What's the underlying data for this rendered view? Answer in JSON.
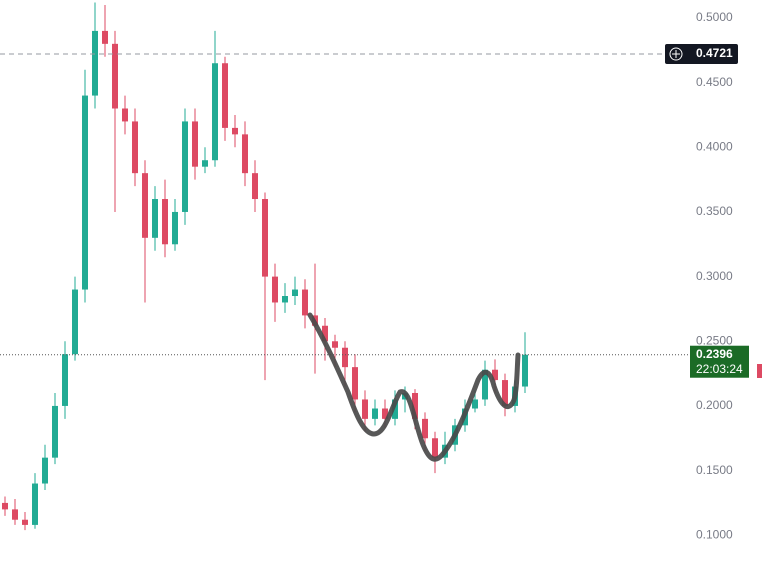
{
  "chart_data": {
    "type": "candlestick",
    "ylim": [
      0.0623,
      0.5139
    ],
    "yticks": [
      {
        "value": 0.5,
        "label": "0.5000"
      },
      {
        "value": 0.45,
        "label": "0.4500"
      },
      {
        "value": 0.4,
        "label": "0.4000"
      },
      {
        "value": 0.35,
        "label": "0.3500"
      },
      {
        "value": 0.3,
        "label": "0.3000"
      },
      {
        "value": 0.25,
        "label": "0.2500"
      },
      {
        "value": 0.2,
        "label": "0.2000"
      },
      {
        "value": 0.15,
        "label": "0.1500"
      },
      {
        "value": 0.1,
        "label": "0.1000"
      }
    ],
    "grid": false,
    "up_color": "#22ab94",
    "down_color": "#dd4a63",
    "price_line": 0.4721,
    "last_price": 0.2396,
    "countdown": "22:03:24",
    "open": [
      0.125,
      0.12,
      0.112,
      0.108,
      0.14,
      0.16,
      0.2,
      0.24,
      0.29,
      0.44,
      0.49,
      0.48,
      0.43,
      0.42,
      0.38,
      0.33,
      0.36,
      0.325,
      0.35,
      0.42,
      0.385,
      0.39,
      0.465,
      0.415,
      0.41,
      0.38,
      0.36,
      0.3,
      0.28,
      0.285,
      0.29,
      0.27,
      0.262,
      0.25,
      0.245,
      0.23,
      0.205,
      0.19,
      0.198,
      0.19,
      0.205,
      0.21,
      0.19,
      0.175,
      0.16,
      0.17,
      0.185,
      0.198,
      0.205,
      0.228,
      0.22,
      0.2,
      0.215
    ],
    "high": [
      0.13,
      0.128,
      0.118,
      0.148,
      0.17,
      0.21,
      0.25,
      0.3,
      0.46,
      0.512,
      0.51,
      0.49,
      0.44,
      0.43,
      0.39,
      0.37,
      0.375,
      0.36,
      0.43,
      0.43,
      0.4,
      0.49,
      0.47,
      0.425,
      0.42,
      0.39,
      0.365,
      0.31,
      0.295,
      0.3,
      0.298,
      0.31,
      0.268,
      0.255,
      0.25,
      0.24,
      0.212,
      0.205,
      0.205,
      0.212,
      0.215,
      0.213,
      0.195,
      0.18,
      0.18,
      0.19,
      0.205,
      0.212,
      0.235,
      0.236,
      0.225,
      0.22,
      0.257
    ],
    "low": [
      0.115,
      0.108,
      0.104,
      0.105,
      0.135,
      0.155,
      0.19,
      0.235,
      0.28,
      0.43,
      0.47,
      0.35,
      0.41,
      0.37,
      0.28,
      0.32,
      0.315,
      0.32,
      0.34,
      0.375,
      0.38,
      0.385,
      0.405,
      0.4,
      0.37,
      0.35,
      0.22,
      0.265,
      0.272,
      0.278,
      0.26,
      0.225,
      0.235,
      0.23,
      0.215,
      0.195,
      0.18,
      0.185,
      0.183,
      0.185,
      0.195,
      0.182,
      0.165,
      0.148,
      0.155,
      0.165,
      0.18,
      0.195,
      0.2,
      0.21,
      0.192,
      0.195,
      0.21
    ],
    "close": [
      0.12,
      0.112,
      0.108,
      0.14,
      0.16,
      0.2,
      0.24,
      0.29,
      0.44,
      0.49,
      0.48,
      0.43,
      0.42,
      0.38,
      0.33,
      0.36,
      0.325,
      0.35,
      0.42,
      0.385,
      0.39,
      0.465,
      0.415,
      0.41,
      0.38,
      0.36,
      0.3,
      0.28,
      0.285,
      0.29,
      0.27,
      0.262,
      0.25,
      0.245,
      0.23,
      0.205,
      0.19,
      0.198,
      0.19,
      0.205,
      0.21,
      0.19,
      0.175,
      0.16,
      0.17,
      0.185,
      0.198,
      0.205,
      0.228,
      0.22,
      0.2,
      0.215,
      0.2396
    ]
  }
}
